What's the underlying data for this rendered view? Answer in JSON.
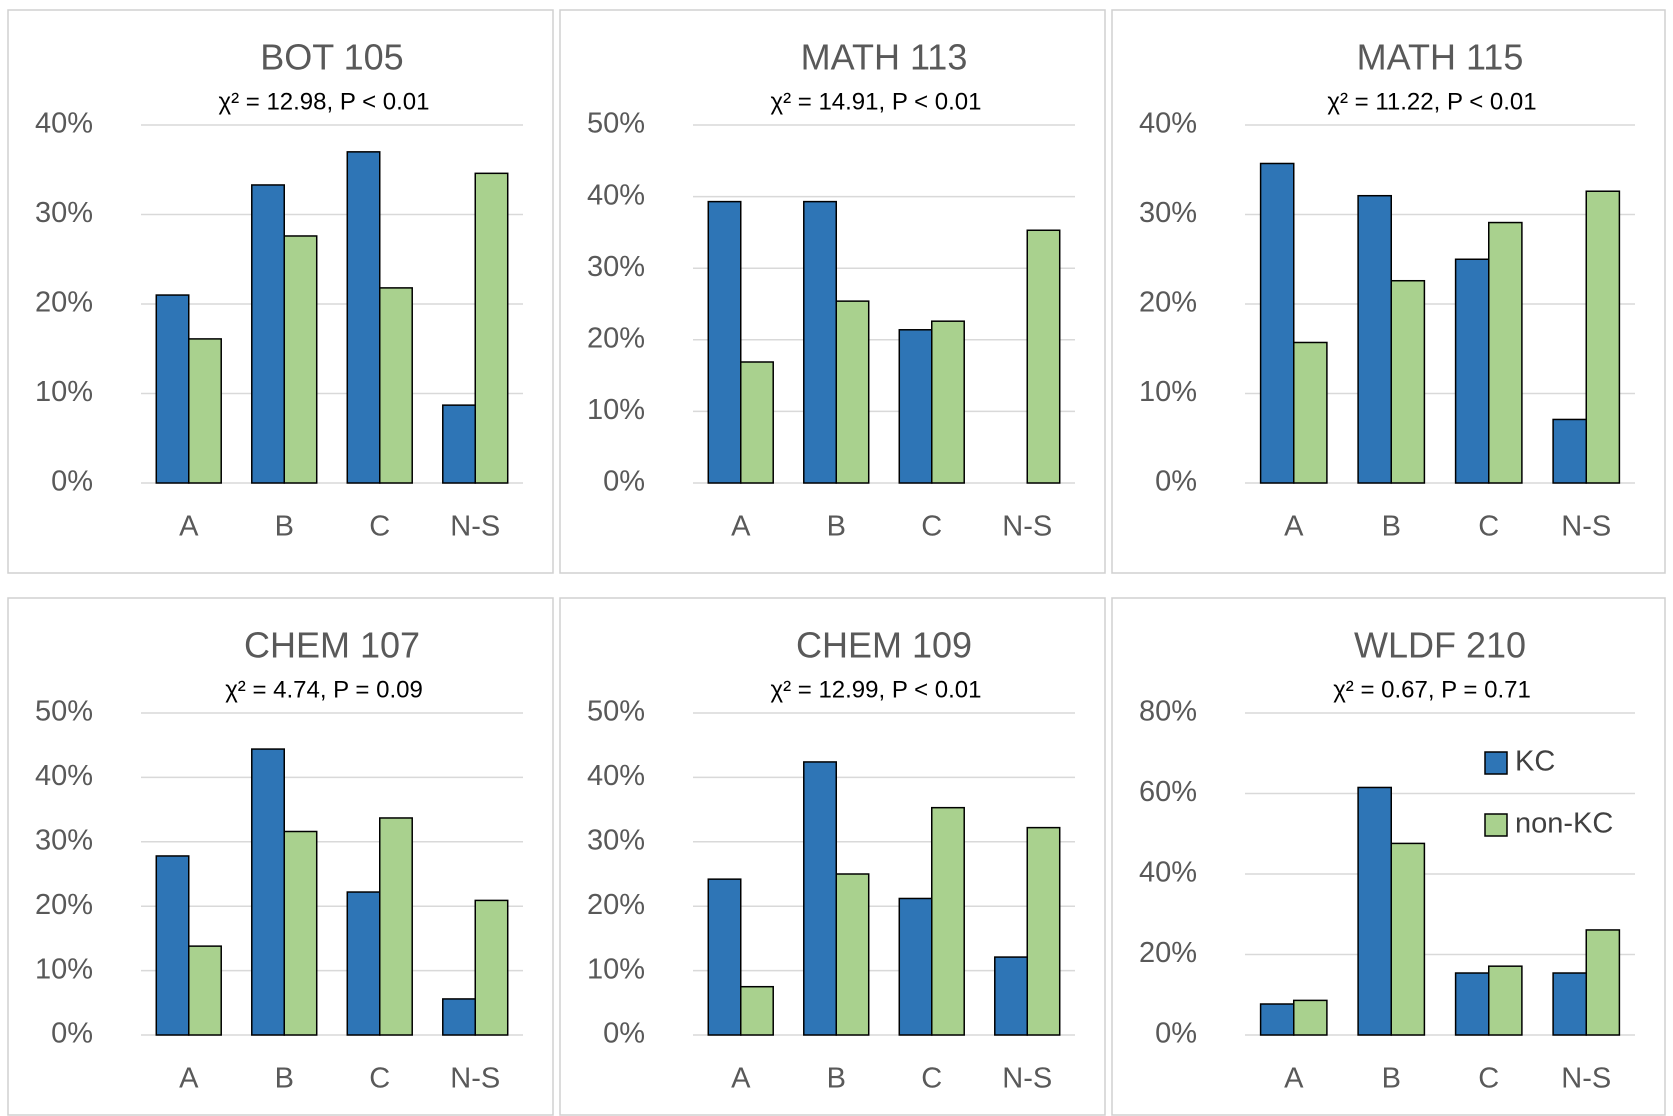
{
  "chart_data": [
    {
      "type": "bar",
      "title": "BOT 105",
      "subtitle": "χ² = 12.98, P < 0.01",
      "categories": [
        "A",
        "B",
        "C",
        "N-S"
      ],
      "series": [
        {
          "color": "#2e75b6",
          "values": [
            21,
            33.3,
            37,
            8.7
          ]
        },
        {
          "color": "#a9d18e",
          "values": [
            16.1,
            27.6,
            21.8,
            34.6
          ]
        }
      ],
      "ylim": [
        0,
        40
      ],
      "yticks": [
        {
          "value": 0,
          "label": "0%"
        },
        {
          "value": 10,
          "label": "10%"
        },
        {
          "value": 20,
          "label": "20%"
        },
        {
          "value": 30,
          "label": "30%"
        },
        {
          "value": 40,
          "label": "40%"
        }
      ],
      "grid": true
    },
    {
      "type": "bar",
      "title": "MATH 113",
      "subtitle": "χ² = 14.91, P < 0.01",
      "categories": [
        "A",
        "B",
        "C",
        "N-S"
      ],
      "series": [
        {
          "color": "#2e75b6",
          "values": [
            39.3,
            39.3,
            21.4,
            0
          ]
        },
        {
          "color": "#a9d18e",
          "values": [
            16.9,
            25.4,
            22.6,
            35.3
          ]
        }
      ],
      "ylim": [
        0,
        50
      ],
      "yticks": [
        {
          "value": 0,
          "label": "0%"
        },
        {
          "value": 10,
          "label": "10%"
        },
        {
          "value": 20,
          "label": "20%"
        },
        {
          "value": 30,
          "label": "30%"
        },
        {
          "value": 40,
          "label": "40%"
        },
        {
          "value": 50,
          "label": "50%"
        }
      ],
      "grid": true
    },
    {
      "type": "bar",
      "title": "MATH 115",
      "subtitle": "χ² = 11.22, P < 0.01",
      "categories": [
        "A",
        "B",
        "C",
        "N-S"
      ],
      "series": [
        {
          "color": "#2e75b6",
          "values": [
            35.7,
            32.1,
            25,
            7.1
          ]
        },
        {
          "color": "#a9d18e",
          "values": [
            15.7,
            22.6,
            29.1,
            32.6
          ]
        }
      ],
      "ylim": [
        0,
        40
      ],
      "yticks": [
        {
          "value": 0,
          "label": "0%"
        },
        {
          "value": 10,
          "label": "10%"
        },
        {
          "value": 20,
          "label": "20%"
        },
        {
          "value": 30,
          "label": "30%"
        },
        {
          "value": 40,
          "label": "40%"
        }
      ],
      "grid": true
    },
    {
      "type": "bar",
      "title": "CHEM 107",
      "subtitle": "χ² = 4.74, P = 0.09",
      "categories": [
        "A",
        "B",
        "C",
        "N-S"
      ],
      "series": [
        {
          "color": "#2e75b6",
          "values": [
            27.8,
            44.4,
            22.2,
            5.6
          ]
        },
        {
          "color": "#a9d18e",
          "values": [
            13.8,
            31.6,
            33.7,
            20.9
          ]
        }
      ],
      "ylim": [
        0,
        50
      ],
      "yticks": [
        {
          "value": 0,
          "label": "0%"
        },
        {
          "value": 10,
          "label": "10%"
        },
        {
          "value": 20,
          "label": "20%"
        },
        {
          "value": 30,
          "label": "30%"
        },
        {
          "value": 40,
          "label": "40%"
        },
        {
          "value": 50,
          "label": "50%"
        }
      ],
      "grid": true
    },
    {
      "type": "bar",
      "title": "CHEM 109",
      "subtitle": "χ² = 12.99, P < 0.01",
      "categories": [
        "A",
        "B",
        "C",
        "N-S"
      ],
      "series": [
        {
          "color": "#2e75b6",
          "values": [
            24.2,
            42.4,
            21.2,
            12.1
          ]
        },
        {
          "color": "#a9d18e",
          "values": [
            7.5,
            25,
            35.3,
            32.2
          ]
        }
      ],
      "ylim": [
        0,
        50
      ],
      "yticks": [
        {
          "value": 0,
          "label": "0%"
        },
        {
          "value": 10,
          "label": "10%"
        },
        {
          "value": 20,
          "label": "20%"
        },
        {
          "value": 30,
          "label": "30%"
        },
        {
          "value": 40,
          "label": "40%"
        },
        {
          "value": 50,
          "label": "50%"
        }
      ],
      "grid": true
    },
    {
      "type": "bar",
      "title": "WLDF 210",
      "subtitle": "χ² = 0.67, P = 0.71",
      "categories": [
        "A",
        "B",
        "C",
        "N-S"
      ],
      "series": [
        {
          "name": "KC",
          "color": "#2e75b6",
          "values": [
            7.7,
            61.5,
            15.4,
            15.4
          ]
        },
        {
          "name": "non-KC",
          "color": "#a9d18e",
          "values": [
            8.6,
            47.6,
            17.1,
            26.1
          ]
        }
      ],
      "ylim": [
        0,
        80
      ],
      "yticks": [
        {
          "value": 0,
          "label": "0%"
        },
        {
          "value": 20,
          "label": "20%"
        },
        {
          "value": 40,
          "label": "40%"
        },
        {
          "value": 60,
          "label": "60%"
        },
        {
          "value": 80,
          "label": "80%"
        }
      ],
      "grid": true,
      "legend": "upper right"
    }
  ]
}
